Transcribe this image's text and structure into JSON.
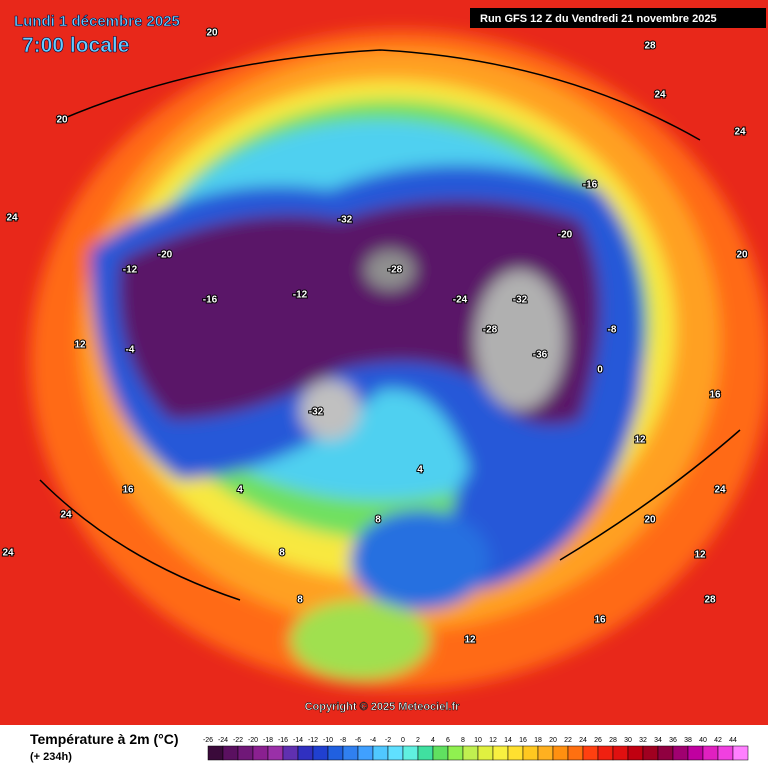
{
  "header": {
    "date": "Lundi 1 décembre 2025",
    "time": "7:00 locale",
    "run": "Run GFS 12 Z du Vendredi 21 novembre 2025"
  },
  "copyright": "Copyright © 2025 Meteociel.fr",
  "legend": {
    "title": "Température à 2m (°C)",
    "subtitle": "(+ 234h)",
    "ticks": [
      -26,
      -24,
      -22,
      -20,
      -18,
      -16,
      -14,
      -12,
      -10,
      -8,
      -6,
      -4,
      -2,
      0,
      2,
      4,
      6,
      8,
      10,
      12,
      14,
      16,
      18,
      20,
      22,
      24,
      26,
      28,
      30,
      32,
      34,
      36,
      38,
      40,
      42,
      44
    ],
    "colors": [
      "#3a0a3a",
      "#5a1060",
      "#701878",
      "#8a2090",
      "#9a30a8",
      "#6030b0",
      "#3030c0",
      "#2040d0",
      "#2060e0",
      "#3080f0",
      "#40a0ff",
      "#50c8ff",
      "#60e0ff",
      "#60f0e0",
      "#40e0a0",
      "#60e060",
      "#90f050",
      "#c0f050",
      "#e0f040",
      "#f8f040",
      "#ffe030",
      "#ffc820",
      "#ffb020",
      "#ff9010",
      "#ff7010",
      "#ff4010",
      "#f02010",
      "#e01010",
      "#c00010",
      "#a00020",
      "#900040",
      "#a00070",
      "#c000a0",
      "#e020c0",
      "#f040e0",
      "#ff80ff"
    ]
  },
  "map_labels": [
    "20",
    "28",
    "24",
    "24",
    "20",
    "24",
    "16",
    "12",
    "-12",
    "-16",
    "-20",
    "-32",
    "-28",
    "-32",
    "-24",
    "-20",
    "-16",
    "-12",
    "-8",
    "-4",
    "0",
    "4",
    "8",
    "12",
    "16",
    "20",
    "24",
    "24",
    "28",
    "-28",
    "-36",
    "-32",
    "8",
    "4",
    "12",
    "16",
    "20",
    "24",
    "12",
    "8"
  ]
}
